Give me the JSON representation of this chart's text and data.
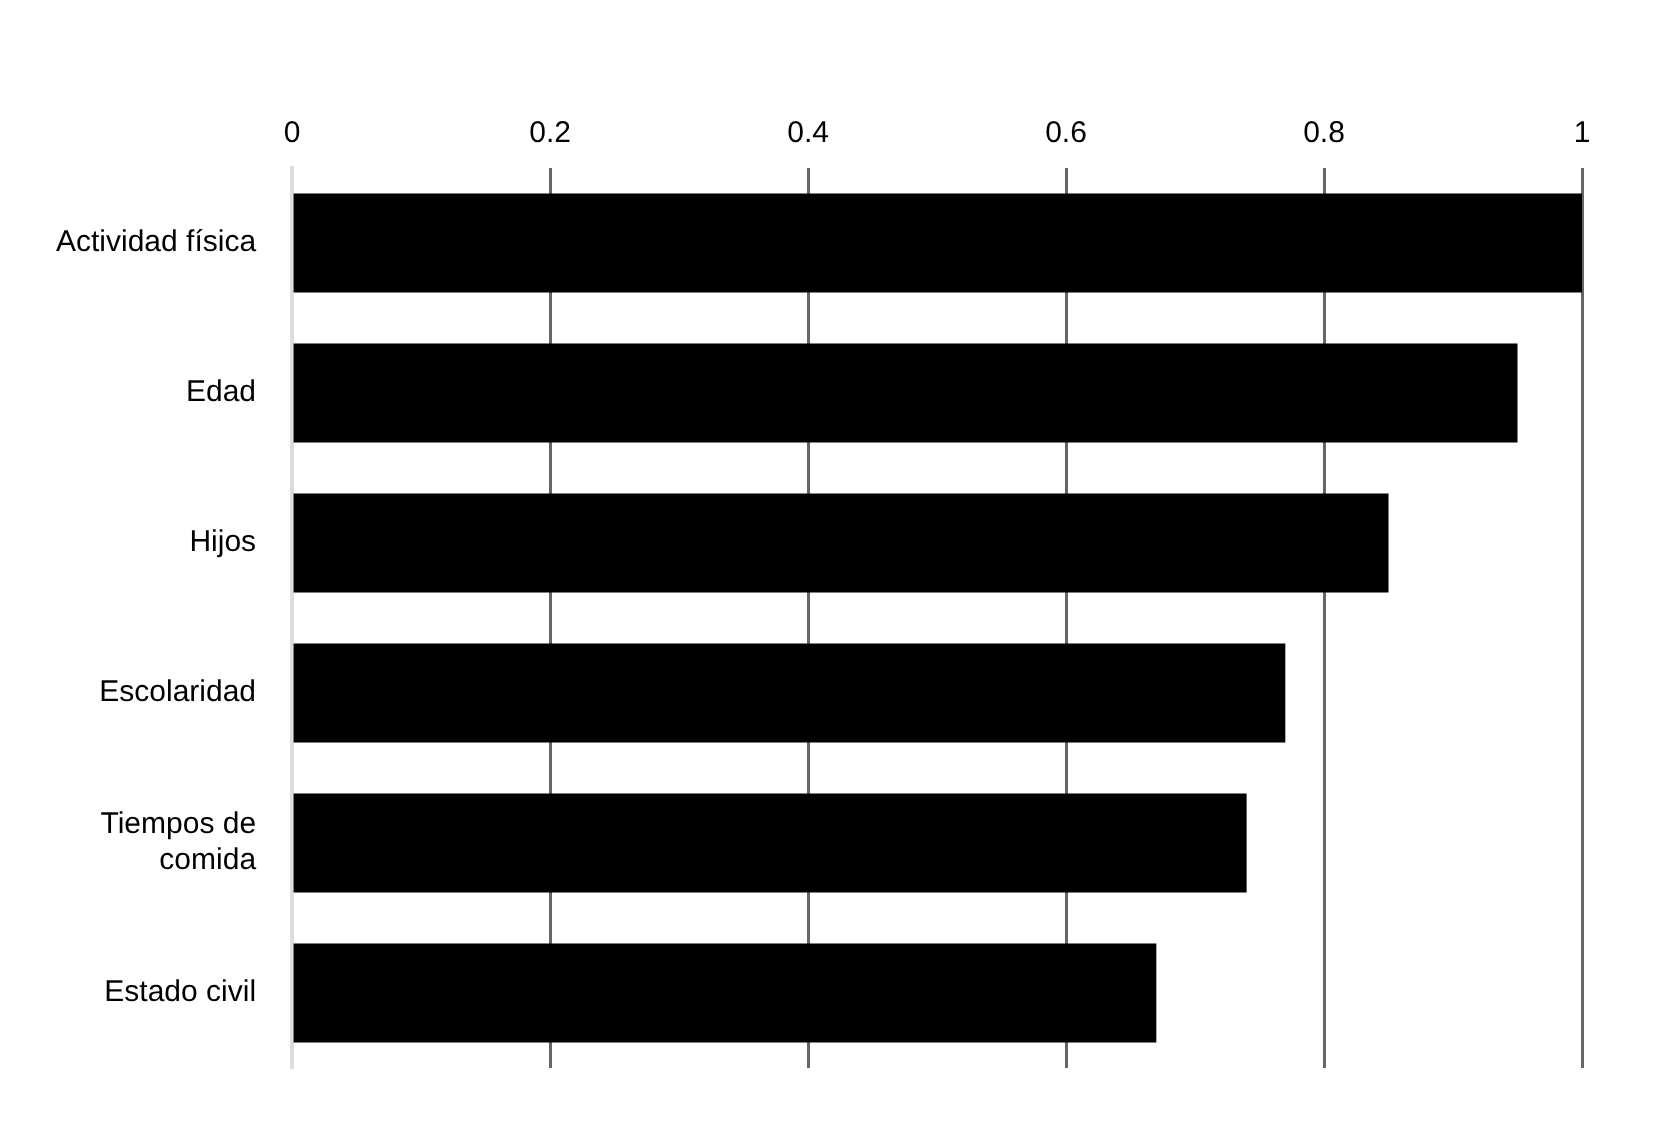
{
  "chart_data": {
    "type": "bar",
    "orientation": "horizontal",
    "categories": [
      "Actividad física",
      "Edad",
      "Hijos",
      "Escolaridad",
      "Tiempos de comida",
      "Estado civil"
    ],
    "values": [
      1.0,
      0.95,
      0.85,
      0.77,
      0.74,
      0.67
    ],
    "color": "#000000",
    "xlim": [
      0,
      1
    ],
    "xticks": [
      0,
      0.2,
      0.4,
      0.6,
      0.8,
      1
    ],
    "grid": "x",
    "legend": false
  }
}
